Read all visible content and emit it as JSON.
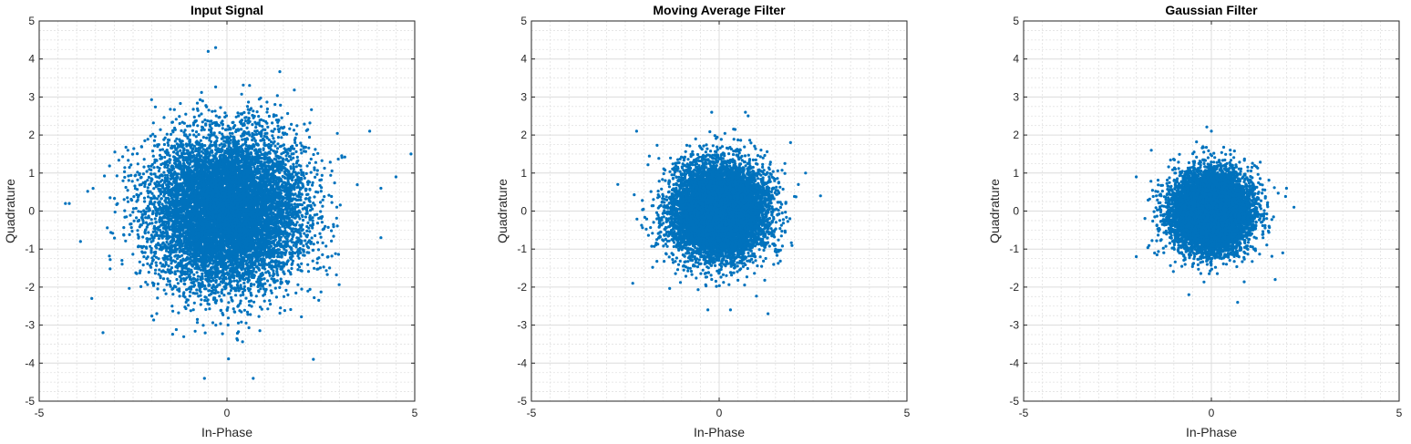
{
  "figure": {
    "background": "#ffffff",
    "marker_color": "#0072bd"
  },
  "chart_data": [
    {
      "type": "scatter",
      "title": "Input Signal",
      "xlabel": "In-Phase",
      "ylabel": "Quadrature",
      "xlim": [
        -5,
        5
      ],
      "ylim": [
        -5,
        5
      ],
      "xticks": [
        "-5",
        "0",
        "5"
      ],
      "yticks": [
        "-5",
        "-4",
        "-3",
        "-2",
        "-1",
        "0",
        "1",
        "2",
        "3",
        "4",
        "5"
      ],
      "grid": true,
      "minor_grid": true,
      "legend": "none",
      "color": "#0072bd",
      "distribution": {
        "kind": "gaussian-cloud",
        "center": [
          0,
          0
        ],
        "std": 1.0,
        "count": 10000
      },
      "outliers": [
        [
          -4.3,
          0.2
        ],
        [
          -4.2,
          0.2
        ],
        [
          4.9,
          1.5
        ],
        [
          4.5,
          0.9
        ],
        [
          -3.3,
          -3.2
        ],
        [
          0.7,
          -4.4
        ],
        [
          -0.6,
          -4.4
        ],
        [
          -0.3,
          4.3
        ],
        [
          -0.5,
          4.2
        ],
        [
          2.3,
          -3.9
        ],
        [
          3.8,
          2.1
        ],
        [
          4.1,
          0.6
        ],
        [
          4.1,
          -0.7
        ],
        [
          -3.6,
          -2.3
        ],
        [
          -3.9,
          -0.8
        ]
      ]
    },
    {
      "type": "scatter",
      "title": "Moving Average Filter",
      "xlabel": "In-Phase",
      "ylabel": "Quadrature",
      "xlim": [
        -5,
        5
      ],
      "ylim": [
        -5,
        5
      ],
      "xticks": [
        "-5",
        "0",
        "5"
      ],
      "yticks": [
        "-5",
        "-4",
        "-3",
        "-2",
        "-1",
        "0",
        "1",
        "2",
        "3",
        "4",
        "5"
      ],
      "grid": true,
      "minor_grid": true,
      "legend": "none",
      "color": "#0072bd",
      "distribution": {
        "kind": "gaussian-cloud",
        "center": [
          0,
          0
        ],
        "std": 0.6,
        "count": 10000
      },
      "outliers": [
        [
          -2.7,
          0.7
        ],
        [
          2.7,
          0.4
        ],
        [
          -2.3,
          -1.9
        ],
        [
          1.3,
          -2.7
        ],
        [
          0.3,
          -2.6
        ],
        [
          -0.3,
          -2.6
        ],
        [
          -2.2,
          2.1
        ],
        [
          0.7,
          2.6
        ],
        [
          -0.2,
          2.6
        ],
        [
          1.9,
          1.8
        ],
        [
          2.3,
          1.0
        ]
      ]
    },
    {
      "type": "scatter",
      "title": "Gaussian Filter",
      "xlabel": "In-Phase",
      "ylabel": "Quadrature",
      "xlim": [
        -5,
        5
      ],
      "ylim": [
        -5,
        5
      ],
      "xticks": [
        "-5",
        "0",
        "5"
      ],
      "yticks": [
        "-5",
        "-4",
        "-3",
        "-2",
        "-1",
        "0",
        "1",
        "2",
        "3",
        "4",
        "5"
      ],
      "grid": true,
      "minor_grid": true,
      "legend": "none",
      "color": "#0072bd",
      "distribution": {
        "kind": "gaussian-cloud",
        "center": [
          0,
          0
        ],
        "std": 0.5,
        "count": 10000
      },
      "outliers": [
        [
          2.2,
          0.1
        ],
        [
          -2.0,
          -1.2
        ],
        [
          -2.0,
          0.9
        ],
        [
          1.7,
          -1.8
        ],
        [
          0.7,
          -2.4
        ],
        [
          -1.6,
          1.6
        ],
        [
          -0.6,
          -2.2
        ],
        [
          0.0,
          2.1
        ],
        [
          2.0,
          0.6
        ],
        [
          1.9,
          -1.1
        ]
      ]
    }
  ]
}
